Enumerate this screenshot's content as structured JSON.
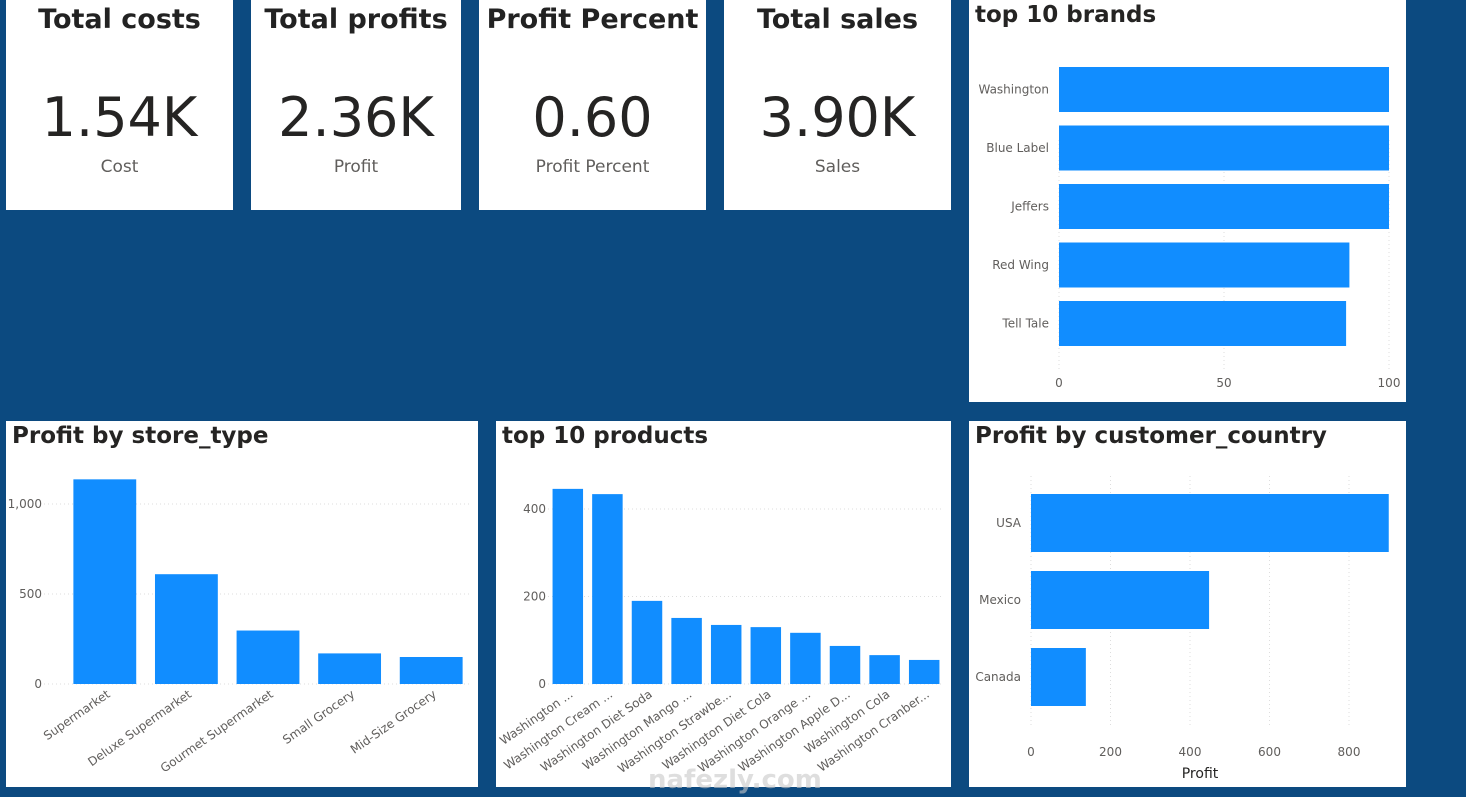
{
  "kpis": [
    {
      "title": "Total costs",
      "value": "1.54K",
      "label": "Cost"
    },
    {
      "title": "Total profits",
      "value": "2.36K",
      "label": "Profit"
    },
    {
      "title": "Profit Percent",
      "value": "0.60",
      "label": "Profit Percent"
    },
    {
      "title": "Total sales",
      "value": "3.90K",
      "label": "Sales"
    }
  ],
  "bar_color": "#118dff",
  "background_color": "#0c4a80",
  "watermark": "nafezly.com",
  "chart_data": [
    {
      "id": "brands",
      "type": "bar",
      "orientation": "horizontal",
      "title": "top 10 brands",
      "categories": [
        "Washington",
        "Blue Label",
        "Jeffers",
        "Red Wing",
        "Tell Tale"
      ],
      "values": [
        100,
        100,
        100,
        88,
        87
      ],
      "xlim": [
        0,
        100
      ],
      "xticks": [
        "0",
        "50",
        "100"
      ],
      "xtick_values": [
        0,
        50,
        100
      ],
      "xlabel": "",
      "grid": true
    },
    {
      "id": "store",
      "type": "bar",
      "orientation": "vertical",
      "title": "Profit by store_type",
      "categories": [
        "Supermarket",
        "Deluxe Supermarket",
        "Gourmet Supermarket",
        "Small Grocery",
        "Mid-Size Grocery"
      ],
      "values": [
        1137,
        610,
        297,
        170,
        150
      ],
      "ylim": [
        0,
        1200
      ],
      "yticks": [
        "0",
        "500",
        "1,000"
      ],
      "ytick_values": [
        0,
        500,
        1000
      ],
      "grid": true
    },
    {
      "id": "products",
      "type": "bar",
      "orientation": "vertical",
      "title": "top 10 products",
      "categories": [
        "Washington ...",
        "Washington Cream ...",
        "Washington Diet Soda",
        "Washington Mango ...",
        "Washington Strawbe...",
        "Washington Diet Cola",
        "Washington Orange ...",
        "Washington Apple D...",
        "Washington Cola",
        "Washington Cranber..."
      ],
      "values": [
        446,
        434,
        190,
        151,
        135,
        130,
        117,
        87,
        66,
        55
      ],
      "ylim": [
        0,
        450
      ],
      "yticks": [
        "0",
        "200",
        "400"
      ],
      "ytick_values": [
        0,
        200,
        400
      ],
      "grid": true
    },
    {
      "id": "country",
      "type": "bar",
      "orientation": "horizontal",
      "title": "Profit by customer_country",
      "categories": [
        "USA",
        "Mexico",
        "Canada"
      ],
      "values": [
        900,
        448,
        138
      ],
      "xlim": [
        0,
        900
      ],
      "xticks": [
        "0",
        "200",
        "400",
        "600",
        "800"
      ],
      "xtick_values": [
        0,
        200,
        400,
        600,
        800
      ],
      "xlabel": "Profit",
      "grid": true
    }
  ]
}
